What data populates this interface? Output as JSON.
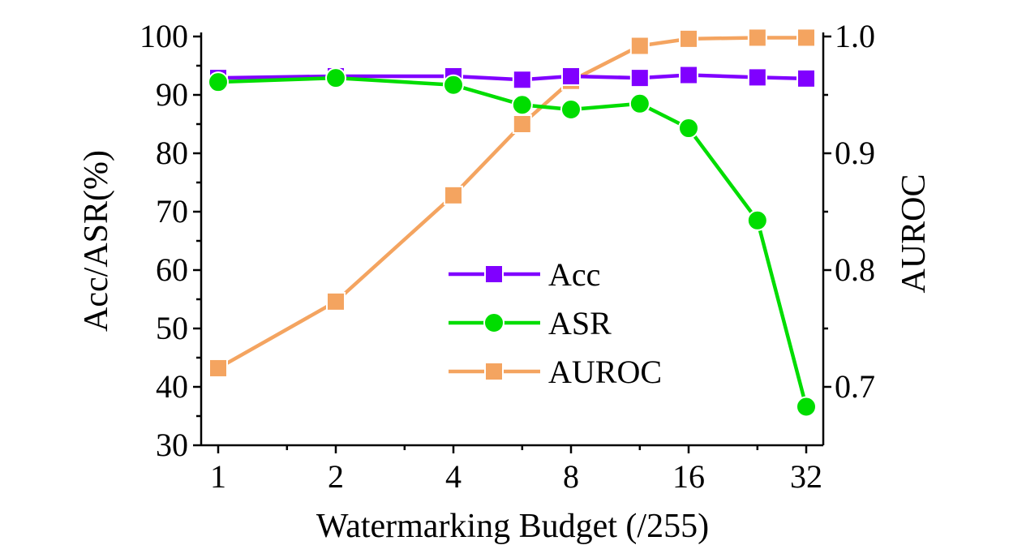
{
  "chart_data": {
    "type": "line",
    "title": "",
    "xlabel": "Watermarking Budget (/255)",
    "ylabel": "Acc/ASR(%)",
    "y2label": "AUROC",
    "x": [
      1,
      2,
      4,
      6,
      8,
      12,
      16,
      24,
      32
    ],
    "x_scale": "log2",
    "x_ticks": [
      "1",
      "2",
      "4",
      "8",
      "16",
      "32"
    ],
    "x_tick_values": [
      1,
      2,
      4,
      8,
      16,
      32
    ],
    "ylim": [
      30,
      100
    ],
    "y_ticks": [
      "30",
      "40",
      "50",
      "60",
      "70",
      "80",
      "90",
      "100"
    ],
    "y2lim": [
      0.65,
      1.0
    ],
    "y2_ticks": [
      "0.7",
      "0.8",
      "0.9",
      "1.0"
    ],
    "grid": false,
    "legend_position": "center-right",
    "series": [
      {
        "name": "Acc",
        "axis": "left",
        "marker": "square",
        "color": "#8000ff",
        "linestyle": "solid",
        "values": [
          92.9,
          93.2,
          93.2,
          92.6,
          93.2,
          92.9,
          93.4,
          93.0,
          92.8
        ]
      },
      {
        "name": "ASR",
        "axis": "left",
        "marker": "circle",
        "color": "#00dd00",
        "linestyle": "solid",
        "values": [
          92.2,
          92.9,
          91.7,
          88.3,
          87.5,
          88.5,
          84.3,
          68.5,
          36.6
        ]
      },
      {
        "name": "AUROC",
        "axis": "right",
        "marker": "square",
        "color": "#f4a460",
        "linestyle": "solid",
        "values": [
          0.716,
          0.773,
          0.864,
          0.925,
          0.962,
          0.992,
          0.998,
          0.999,
          0.999
        ]
      }
    ]
  }
}
